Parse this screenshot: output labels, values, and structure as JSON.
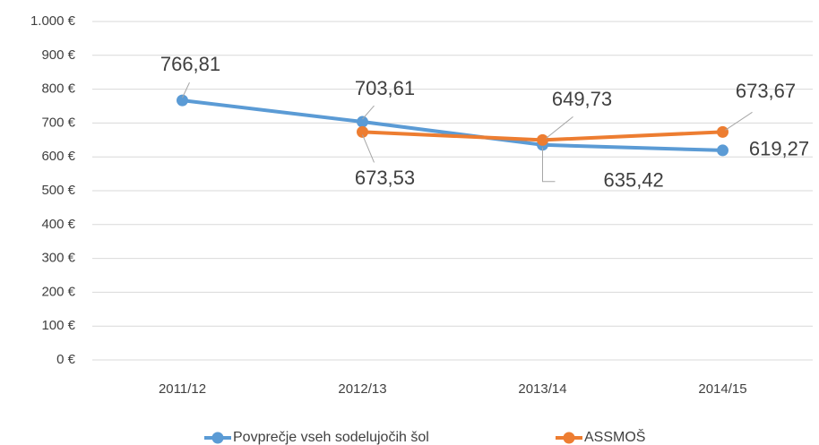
{
  "chart_data": {
    "type": "line",
    "categories": [
      "2011/12",
      "2012/13",
      "2013/14",
      "2014/15"
    ],
    "series": [
      {
        "name": "Povprečje vseh sodelujočih šol",
        "color": "#5b9bd5",
        "values": [
          766.81,
          703.61,
          635.42,
          619.27
        ],
        "value_labels": [
          "766,81",
          "703,61",
          "635,42",
          "619,27"
        ]
      },
      {
        "name": "ASSMOŠ",
        "color": "#ed7d31",
        "values": [
          null,
          673.53,
          649.73,
          673.67
        ],
        "value_labels": [
          null,
          "673,53",
          "649,73",
          "673,67"
        ]
      }
    ],
    "ylim": [
      0,
      1000
    ],
    "yticks": [
      {
        "value": 0,
        "label": "0 €"
      },
      {
        "value": 100,
        "label": "100 €"
      },
      {
        "value": 200,
        "label": "200 €"
      },
      {
        "value": 300,
        "label": "300 €"
      },
      {
        "value": 400,
        "label": "400 €"
      },
      {
        "value": 500,
        "label": "500 €"
      },
      {
        "value": 600,
        "label": "600 €"
      },
      {
        "value": 700,
        "label": "700 €"
      },
      {
        "value": 800,
        "label": "800 €"
      },
      {
        "value": 900,
        "label": "900 €"
      },
      {
        "value": 1000,
        "label": "1.000 €"
      }
    ],
    "grid": true,
    "legend": "bottom"
  }
}
